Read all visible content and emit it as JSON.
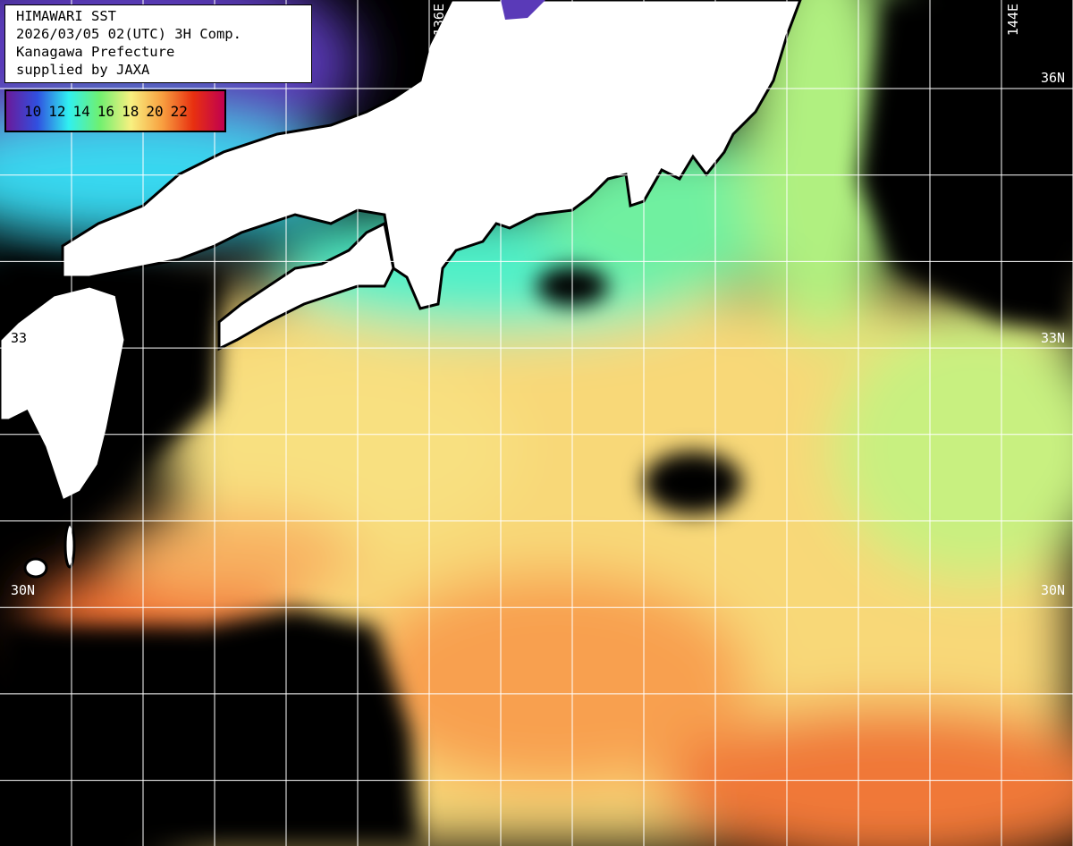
{
  "title": {
    "lines": [
      "HIMAWARI SST",
      "2026/03/05 02(UTC) 3H Comp.",
      "Kanagawa Prefecture",
      "supplied by JAXA"
    ]
  },
  "legend": {
    "labels": [
      "10",
      "12",
      "14",
      "16",
      "18",
      "20",
      "22"
    ],
    "colors": [
      "#6a1a9a",
      "#3050e0",
      "#30f0f0",
      "#70f070",
      "#f8f080",
      "#f8a040",
      "#e83010",
      "#c00050"
    ]
  },
  "grid": {
    "longitude_labels": [
      "136E",
      "144E"
    ],
    "latitude_labels_right": [
      "36N",
      "33N",
      "30N"
    ],
    "latitude_labels_left": [
      "33",
      "30N"
    ]
  },
  "colors": {
    "land": "#ffffff",
    "no_data": "#000000",
    "grid": "#ffffff"
  }
}
